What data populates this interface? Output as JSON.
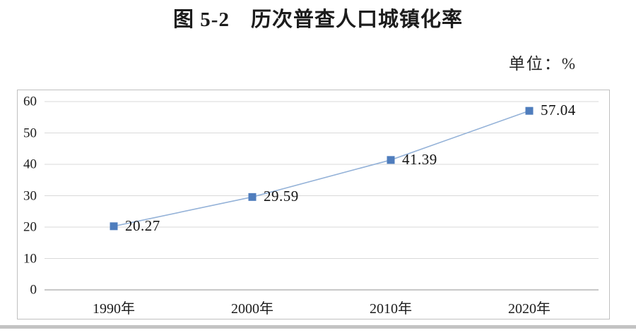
{
  "figure": {
    "title": "图 5-2　历次普查人口城镇化率",
    "unit_label": "单位：%"
  },
  "chart_data": {
    "type": "line",
    "title": "图 5-2　历次普查人口城镇化率",
    "unit": "%",
    "categories": [
      "1990年",
      "2000年",
      "2010年",
      "2020年"
    ],
    "values": [
      20.27,
      29.59,
      41.39,
      57.04
    ],
    "labels": [
      "20.27",
      "29.59",
      "41.39",
      "57.04"
    ],
    "y_ticks": [
      0,
      10,
      20,
      30,
      40,
      50,
      60
    ],
    "ylim": [
      0,
      60
    ],
    "xlabel": "",
    "ylabel": "",
    "grid": true,
    "legend_position": "none",
    "marker": "square"
  },
  "colors": {
    "line": "#94b2d8",
    "marker": "#4f7dbd",
    "grid": "#d9d9d9",
    "axis": "#a6a6a6",
    "frame_border": "#c0c0c0",
    "text": "#1c1c1c",
    "bottom_rule": "#c3c3c3"
  }
}
